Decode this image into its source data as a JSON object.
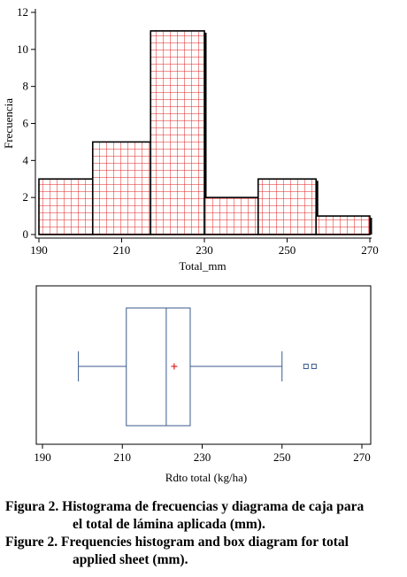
{
  "chart_data": [
    {
      "type": "bar",
      "subtype": "histogram",
      "xlabel": "Total_mm",
      "ylabel": "Frecuencia",
      "xlim": [
        190,
        270
      ],
      "ylim": [
        0,
        12
      ],
      "x_ticks": [
        "190",
        "210",
        "230",
        "250",
        "270"
      ],
      "y_ticks": [
        "0",
        "2",
        "4",
        "6",
        "8",
        "10",
        "12"
      ],
      "bins": [
        {
          "from": 190,
          "to": 203,
          "count": 3
        },
        {
          "from": 203,
          "to": 217,
          "count": 5
        },
        {
          "from": 217,
          "to": 230,
          "count": 11
        },
        {
          "from": 230,
          "to": 243,
          "count": 2
        },
        {
          "from": 243,
          "to": 257,
          "count": 3
        },
        {
          "from": 257,
          "to": 270,
          "count": 1
        }
      ],
      "fill_color": "#ffffff",
      "grid_pattern_color": "#e02020",
      "edge_color": "#000000",
      "grid": false
    },
    {
      "type": "box",
      "xlabel": "Rdto total (kg/ha)",
      "xlim": [
        190,
        270
      ],
      "x_ticks": [
        "190",
        "210",
        "230",
        "250",
        "270"
      ],
      "whisker_min": 199,
      "q1": 211,
      "median": 221,
      "q3": 227,
      "whisker_max": 250,
      "mean": 223,
      "outliers": [
        256,
        258
      ],
      "box_color": "#3a5a8c",
      "mean_marker_color": "#e02020"
    }
  ],
  "caption": {
    "es_line1": "Figura 2. Histograma de frecuencias y diagrama de caja para",
    "es_line2": "el total de lámina aplicada (mm).",
    "en_line1": "Figure 2.  Frequencies histogram and box diagram for total",
    "en_line2": "applied sheet (mm)."
  }
}
